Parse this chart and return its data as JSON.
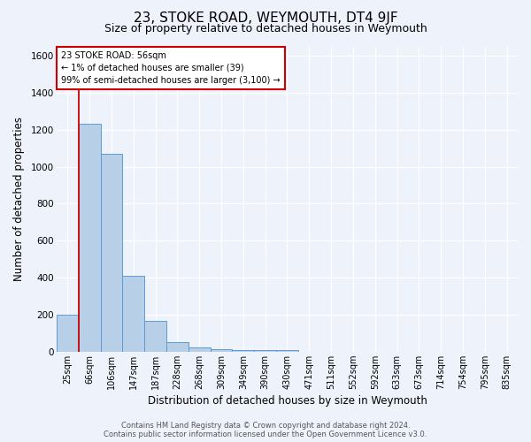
{
  "title": "23, STOKE ROAD, WEYMOUTH, DT4 9JF",
  "subtitle": "Size of property relative to detached houses in Weymouth",
  "xlabel": "Distribution of detached houses by size in Weymouth",
  "ylabel": "Number of detached properties",
  "categories": [
    "25sqm",
    "66sqm",
    "106sqm",
    "147sqm",
    "187sqm",
    "228sqm",
    "268sqm",
    "309sqm",
    "349sqm",
    "390sqm",
    "430sqm",
    "471sqm",
    "511sqm",
    "552sqm",
    "592sqm",
    "633sqm",
    "673sqm",
    "714sqm",
    "754sqm",
    "795sqm",
    "835sqm"
  ],
  "values": [
    200,
    1230,
    1070,
    410,
    165,
    50,
    25,
    15,
    10,
    10,
    10,
    0,
    0,
    0,
    0,
    0,
    0,
    0,
    0,
    0,
    0
  ],
  "bar_color": "#b8cfe8",
  "bar_edge_color": "#5b9bd5",
  "background_color": "#eef2fb",
  "grid_color": "#ffffff",
  "red_line_x": 0.5,
  "annotation_text": "23 STOKE ROAD: 56sqm\n← 1% of detached houses are smaller (39)\n99% of semi-detached houses are larger (3,100) →",
  "annotation_box_color": "#ffffff",
  "annotation_box_edge": "#cc0000",
  "red_line_color": "#cc0000",
  "footer_line1": "Contains HM Land Registry data © Crown copyright and database right 2024.",
  "footer_line2": "Contains public sector information licensed under the Open Government Licence v3.0.",
  "ylim": [
    0,
    1650
  ],
  "yticks": [
    0,
    200,
    400,
    600,
    800,
    1000,
    1200,
    1400,
    1600
  ],
  "title_fontsize": 11,
  "subtitle_fontsize": 9,
  "axis_label_fontsize": 8.5,
  "tick_fontsize": 7,
  "footer_fontsize": 6
}
